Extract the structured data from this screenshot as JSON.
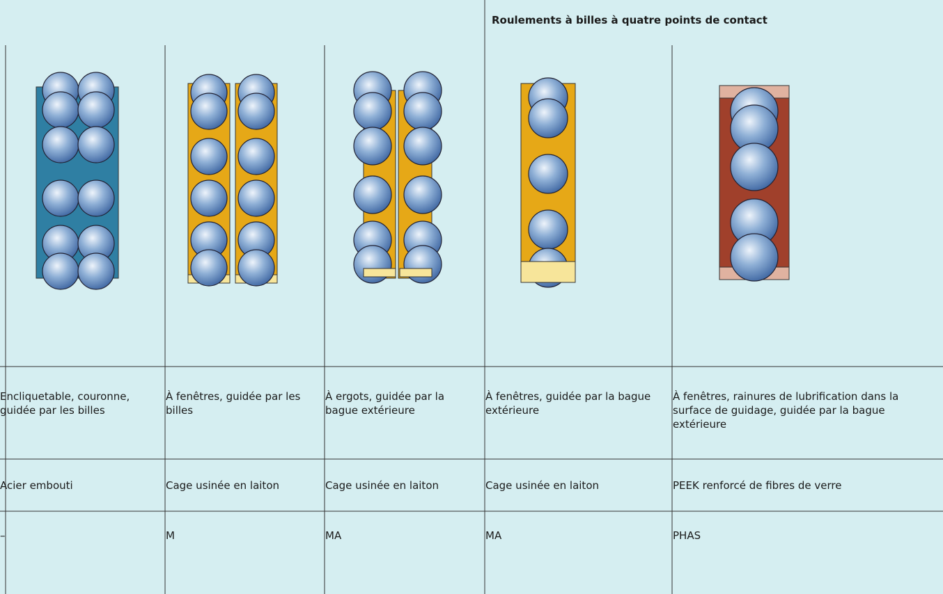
{
  "header": {
    "title": "Roulements à billes à quatre points de contact"
  },
  "table": {
    "rows": [
      [
        "Encliquetable, couronne, guidée par les billes",
        "À fenêtres, guidée par les billes",
        "À ergots, guidée par la bague extérieure",
        "À fenêtres, guidée par la bague extérieure",
        "À fenêtres, rainures de lubrification dans la surface de guidage, guidée par la bague extérieure"
      ],
      [
        "Acier embouti",
        "Cage usinée en laiton",
        "Cage usinée en laiton",
        "Cage usinée en laiton",
        "PEEK renforcé de fibres de verre"
      ],
      [
        "–",
        "M",
        "MA",
        "MA",
        "PHAS"
      ]
    ]
  }
}
